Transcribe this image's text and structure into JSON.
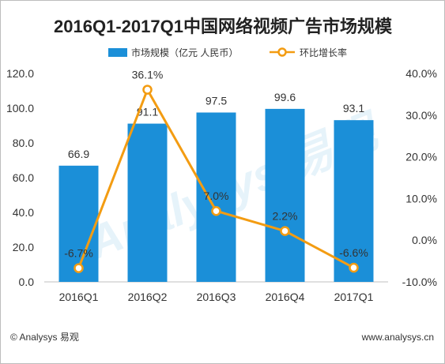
{
  "chart_data": {
    "type": "bar+line",
    "title": "2016Q1-2017Q1中国网络视频广告市场规模",
    "categories": [
      "2016Q1",
      "2016Q2",
      "2016Q3",
      "2016Q4",
      "2017Q1"
    ],
    "series": [
      {
        "name": "市场规模（亿元 人民币）",
        "type": "bar",
        "axis": "left",
        "values": [
          66.9,
          91.1,
          97.5,
          99.6,
          93.1
        ],
        "labels": [
          "66.9",
          "91.1",
          "97.5",
          "99.6",
          "93.1"
        ],
        "color": "#1b8fd8"
      },
      {
        "name": "环比增长率",
        "type": "line",
        "axis": "right",
        "values": [
          -6.7,
          36.1,
          7.0,
          2.2,
          -6.6
        ],
        "labels": [
          "-6.7%",
          "36.1%",
          "7.0%",
          "2.2%",
          "-6.6%"
        ],
        "color": "#f39c12"
      }
    ],
    "y_left": {
      "range": [
        0,
        120
      ],
      "ticks": [
        "0.0",
        "20.0",
        "40.0",
        "60.0",
        "80.0",
        "100.0",
        "120.0"
      ]
    },
    "y_right": {
      "range": [
        -10,
        40
      ],
      "ticks": [
        "-10.0%",
        "0.0%",
        "10.0%",
        "20.0%",
        "30.0%",
        "40.0%"
      ]
    },
    "grid": false,
    "legend_position": "top-center"
  },
  "footer": {
    "source": "© Analysys 易观",
    "website": "www.analysys.cn"
  },
  "watermark": "Analysys 易观"
}
